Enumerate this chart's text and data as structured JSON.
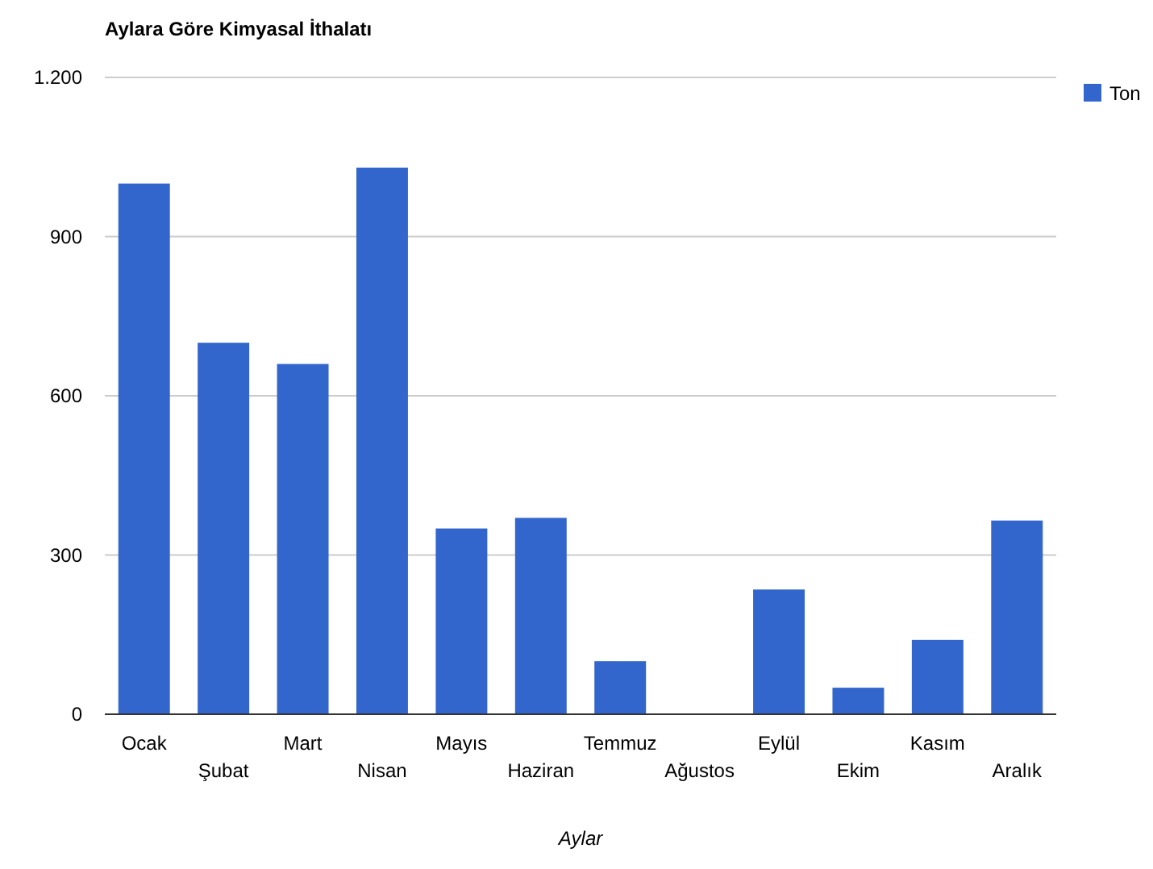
{
  "chart_data": {
    "type": "bar",
    "title": "Aylara Göre Kimyasal İthalatı",
    "xlabel": "Aylar",
    "categories": [
      "Ocak",
      "Şubat",
      "Mart",
      "Nisan",
      "Mayıs",
      "Haziran",
      "Temmuz",
      "Ağustos",
      "Eylül",
      "Ekim",
      "Kasım",
      "Aralık"
    ],
    "series": [
      {
        "name": "Ton",
        "color": "#3366cc",
        "values": [
          1000,
          700,
          660,
          1030,
          350,
          370,
          100,
          0,
          235,
          50,
          140,
          365
        ]
      }
    ],
    "ylim": [
      0,
      1200
    ],
    "yticks": [
      0,
      300,
      600,
      900,
      {
        "value": 1200,
        "label": "1.200"
      }
    ],
    "grid": "y",
    "legend": "top right"
  }
}
